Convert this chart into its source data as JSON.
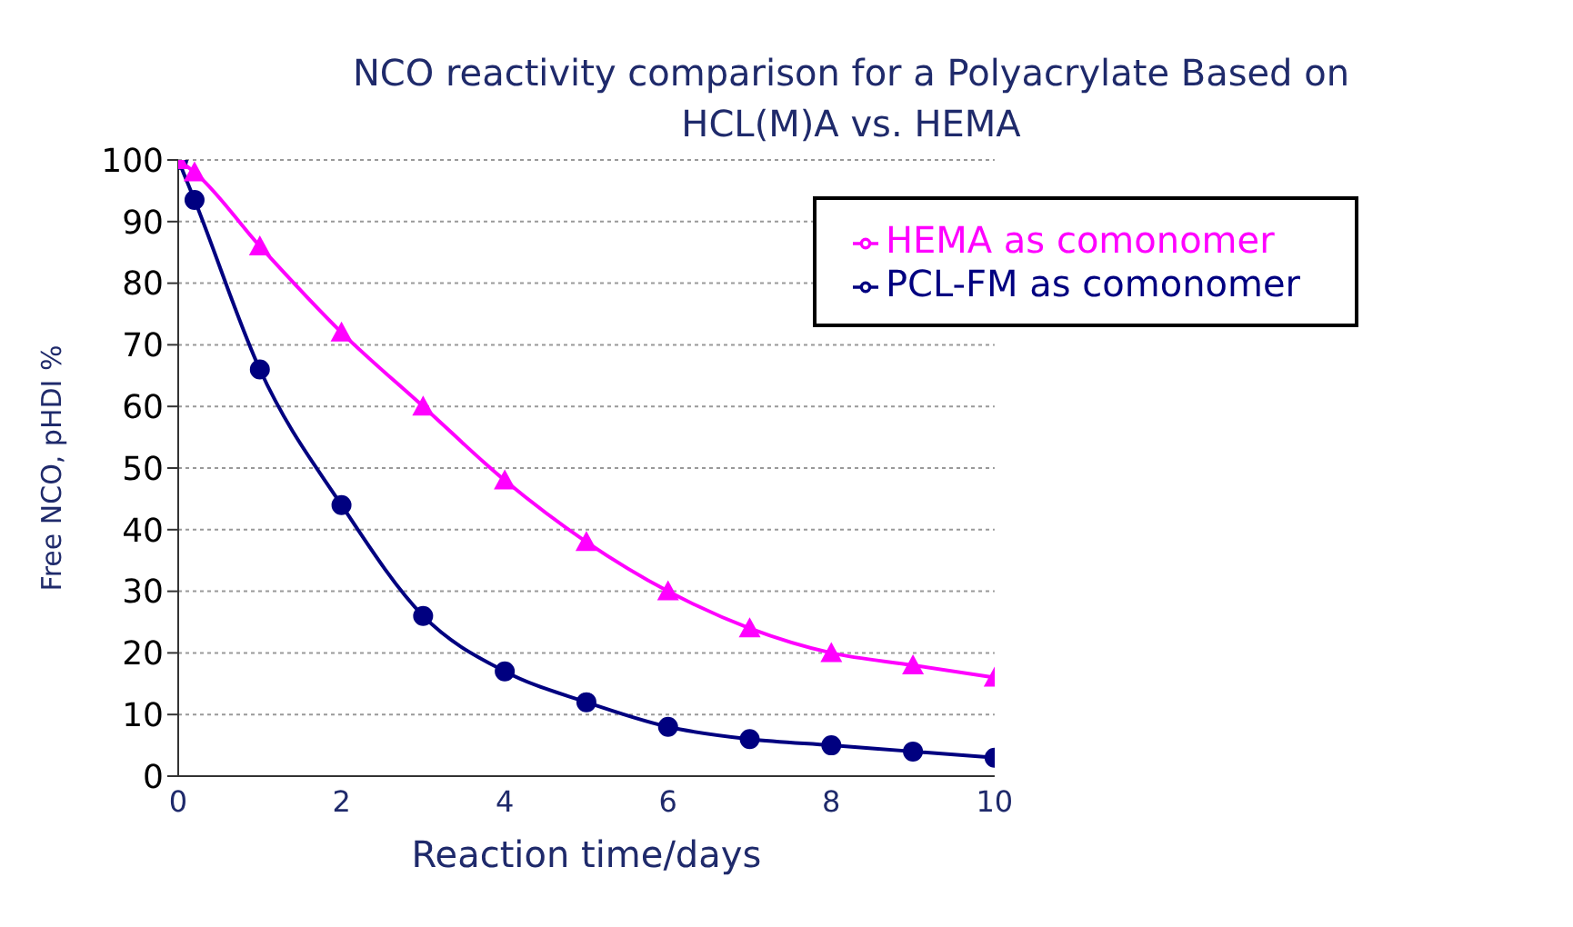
{
  "chart_data": {
    "type": "line",
    "title": "NCO reactivity comparison for a Polyacrylate Based on HCL(M)A vs. HEMA",
    "xlabel": "Reaction time/days",
    "ylabel": "Free NCO, pHDI %",
    "xlim": [
      0,
      10
    ],
    "xticks": [
      0,
      2,
      4,
      6,
      8,
      10
    ],
    "ylim": [
      0,
      100
    ],
    "yticks": [
      0,
      10,
      20,
      30,
      40,
      50,
      60,
      70,
      80,
      90,
      100
    ],
    "grid": "y",
    "legend": "top right",
    "series": [
      {
        "name": "PCL-FM as comonomer",
        "color": "#000080",
        "marker": "circle",
        "x": [
          0,
          0.2,
          1,
          2,
          3,
          4,
          5,
          6,
          7,
          8,
          9,
          10
        ],
        "values": [
          100,
          93.5,
          66,
          44,
          26,
          17,
          12,
          8,
          6,
          5,
          4,
          3
        ]
      },
      {
        "name": "HEMA as comonomer",
        "color": "#ff00ff",
        "marker": "triangle",
        "x": [
          0,
          0.2,
          1,
          2,
          3,
          4,
          5,
          6,
          7,
          8,
          9,
          10
        ],
        "values": [
          100,
          98,
          86,
          72,
          60,
          48,
          38,
          30,
          24,
          20,
          18,
          16
        ]
      }
    ]
  }
}
